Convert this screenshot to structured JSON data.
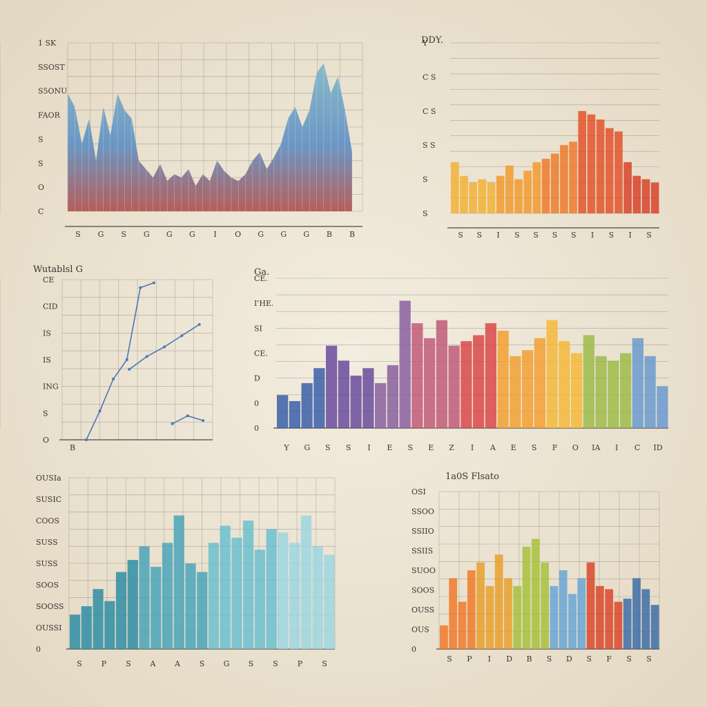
{
  "chart_data": [
    {
      "type": "area",
      "title": "",
      "yticks": [
        "1 SK",
        "SSOST",
        "S5ONU",
        "FAOR",
        "S",
        "S",
        "O",
        "C"
      ],
      "xticks": [
        "S",
        "G",
        "S",
        "G",
        "G",
        "G",
        "I",
        "O",
        "G",
        "G",
        "G",
        "B",
        "B"
      ],
      "ylim": [
        0,
        100
      ],
      "colors": [
        "#5d8fc4",
        "#7eb6c8",
        "#b0504d"
      ],
      "x": [
        0,
        1,
        2,
        3,
        4,
        5,
        6,
        7,
        8,
        9,
        10,
        11,
        12,
        13,
        14,
        15,
        16,
        17,
        18,
        19,
        20,
        21,
        22,
        23,
        24,
        25,
        26,
        27,
        28,
        29,
        30,
        31,
        32,
        33,
        34,
        35,
        36,
        37,
        38,
        39,
        40
      ],
      "values": [
        70,
        62,
        40,
        55,
        30,
        62,
        45,
        70,
        60,
        55,
        30,
        25,
        20,
        28,
        18,
        22,
        20,
        25,
        15,
        22,
        18,
        30,
        24,
        20,
        18,
        22,
        30,
        35,
        25,
        32,
        40,
        55,
        62,
        50,
        60,
        82,
        88,
        70,
        80,
        60,
        35
      ]
    },
    {
      "type": "bar",
      "title": "DDY.",
      "yticks": [
        "Y",
        "C S",
        "C S",
        "S S",
        "S",
        "S"
      ],
      "xticks": [
        "S",
        "S",
        "I",
        "S",
        "S",
        "S",
        "S",
        "I",
        "S",
        "I",
        "S"
      ],
      "ylim": [
        0,
        100
      ],
      "values": [
        30,
        22,
        18,
        20,
        18,
        22,
        28,
        20,
        25,
        30,
        32,
        35,
        40,
        42,
        60,
        58,
        55,
        50,
        48,
        30,
        22,
        20,
        18
      ],
      "colors": [
        "#f2b236",
        "#f39a2e",
        "#ee7a2c",
        "#e2542a",
        "#d8432a"
      ]
    },
    {
      "type": "line",
      "title": "Wutablsl G",
      "yticks": [
        "CE",
        "CID",
        "IS",
        "IS",
        "ING",
        "S",
        "O"
      ],
      "xticks": [
        "B"
      ],
      "ylim": [
        0,
        100
      ],
      "series": [
        {
          "values": [
            0,
            18,
            38,
            50,
            95,
            98
          ]
        },
        {
          "values": [
            44,
            52,
            58,
            65,
            72
          ]
        },
        {
          "values": [
            10,
            15,
            12
          ]
        }
      ],
      "colors": [
        "#4a78b8"
      ]
    },
    {
      "type": "bar",
      "title": "Ga.",
      "yticks": [
        "CE.",
        "I'HE.",
        "SI",
        "CE.",
        "D",
        "0",
        "0"
      ],
      "xticks": [
        "Y",
        "G",
        "S",
        "S",
        "I",
        "E",
        "S",
        "E",
        "Z",
        "I",
        "A",
        "E",
        "S",
        "F",
        "O",
        "IA",
        "I",
        "C",
        "ID"
      ],
      "ylim": [
        0,
        100
      ],
      "values": [
        22,
        18,
        30,
        40,
        55,
        45,
        35,
        40,
        30,
        42,
        85,
        70,
        60,
        72,
        55,
        58,
        62,
        70,
        65,
        48,
        52,
        60,
        72,
        58,
        50,
        62,
        48,
        45,
        50,
        60,
        48,
        28
      ],
      "colors": [
        "#3a5fa8",
        "#6a4c9c",
        "#8a5fa0",
        "#c25a7a",
        "#d9484a",
        "#f2a033",
        "#f5b93a",
        "#9dbb4a",
        "#6a9ad0"
      ]
    },
    {
      "type": "bar",
      "title": "",
      "yticks": [
        "OUSIa",
        "SUSIC",
        "COOS",
        "SUSS",
        "SUSS",
        "SOOS",
        "SOOSS",
        "OUSSI",
        "0"
      ],
      "xticks": [
        "S",
        "P",
        "S",
        "A",
        "A",
        "S",
        "G",
        "S",
        "S",
        "P",
        "S"
      ],
      "ylim": [
        0,
        100
      ],
      "values": [
        20,
        25,
        35,
        28,
        45,
        52,
        60,
        48,
        62,
        78,
        50,
        45,
        62,
        72,
        65,
        75,
        58,
        70,
        68,
        62,
        78,
        60,
        55
      ],
      "colors": [
        "#2f8ea6",
        "#4aa5b8",
        "#6cc0cf",
        "#9ed6e0"
      ]
    },
    {
      "type": "bar",
      "title": "1a0S Flsato",
      "yticks": [
        "OSI",
        "SSOO",
        "SSIIO",
        "SSIIS",
        "SUOO",
        "SOOS",
        "OUSS",
        "OUS",
        "0"
      ],
      "xticks": [
        "S",
        "P",
        "I",
        "D",
        "B",
        "S",
        "D",
        "S",
        "F",
        "S",
        "S"
      ],
      "ylim": [
        0,
        100
      ],
      "values": [
        15,
        45,
        30,
        50,
        55,
        40,
        60,
        45,
        40,
        65,
        70,
        55,
        40,
        50,
        35,
        45,
        55,
        40,
        38,
        30,
        32,
        45,
        38,
        28
      ],
      "colors": [
        "#f07a2a",
        "#e9a02c",
        "#a7c23c",
        "#6aa6d6",
        "#d9482c",
        "#3d6fa8"
      ]
    }
  ]
}
